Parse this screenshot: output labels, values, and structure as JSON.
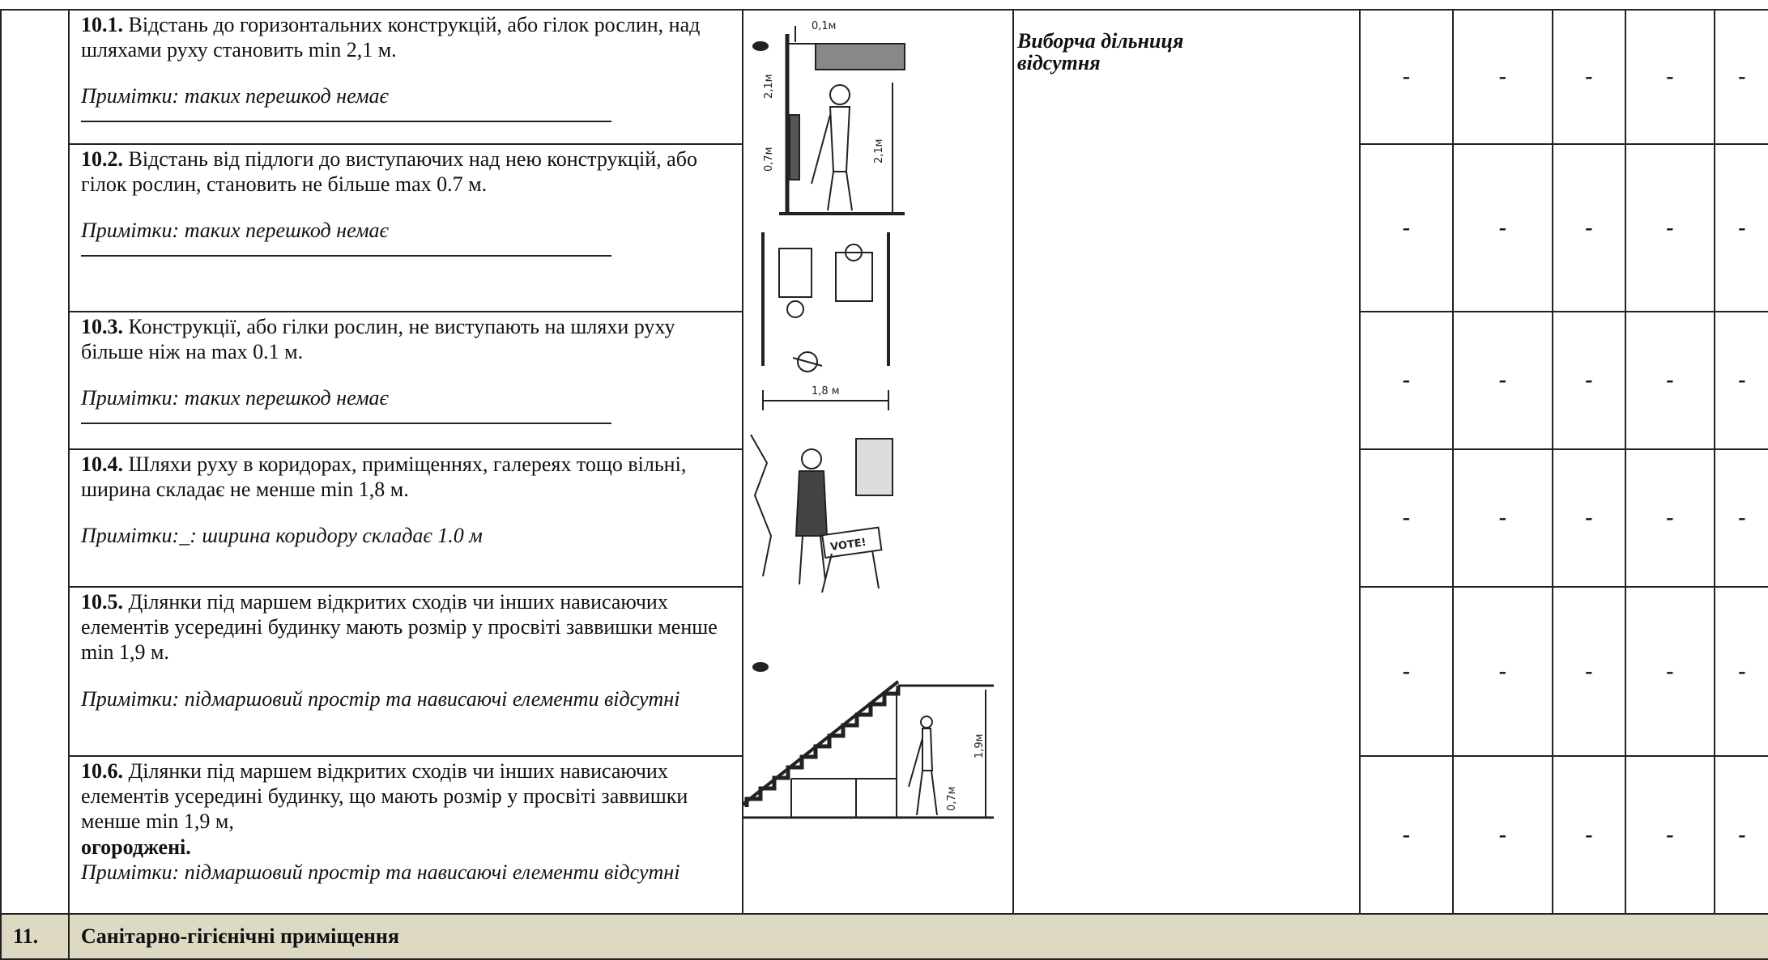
{
  "rows": [
    {
      "number": "10.1.",
      "text": "Відстань до горизонтальних конструкцій, або гілок рослин, над шляхами руху становить min 2,1 м.",
      "note": "Примітки: таких перешкод немає",
      "marks": [
        "-",
        "-",
        "-",
        "-",
        "-"
      ]
    },
    {
      "number": "10.2.",
      "text": "Відстань від підлоги до виступаючих над нею конструкцій, або гілок рослин, становить не більше max 0.7 м.",
      "note": "Примітки:  таких перешкод немає",
      "marks": [
        "-",
        "-",
        "-",
        "-",
        "-"
      ]
    },
    {
      "number": "10.3.",
      "text": "Конструкції, або гілки рослин, не виступають на шляхи руху більше ніж на max 0.1 м.",
      "note": "Примітки:  таких перешкод немає",
      "marks": [
        "-",
        "-",
        "-",
        "-",
        "-"
      ]
    },
    {
      "number": "10.4.",
      "text": "Шляхи руху в коридорах, приміщеннях, галереях тощо вільні, ширина складає не менше min 1,8 м.",
      "note": "Примітки:_: ширина коридору складає  1.0 м",
      "marks": [
        "-",
        "-",
        "-",
        "-",
        "-"
      ]
    },
    {
      "number": "10.5.",
      "text": "Ділянки під маршем відкритих сходів чи інших нависаючих елементів усередині будинку мають розмір у просвіті заввишки менше min 1,9 м.",
      "note": "Примітки: підмаршовий простір та нависаючі елементи відсутні",
      "marks": [
        "-",
        "-",
        "-",
        "-",
        "-"
      ]
    },
    {
      "number": "10.6.",
      "text": "Ділянки під маршем відкритих сходів чи інших нависаючих елементів усередині будинку, що мають розмір у просвіті заввишки менше min 1,9 м,",
      "emphasis": "огороджені.",
      "note": "Примітки:  підмаршовий простір та нависаючі елементи відсутні",
      "marks": [
        "-",
        "-",
        "-",
        "-",
        "-"
      ]
    }
  ],
  "location_note": "Виборча дільниця відсутня",
  "figure_labels": {
    "gap": "0,1м",
    "height_left": "2,1м",
    "low": "0,7м",
    "height_right": "2,1м",
    "width": "1,8 м",
    "sign": "VOTE!",
    "stair_height": "1,9м",
    "rail_height": "0,7м"
  },
  "section": {
    "number": "11.",
    "title": "Санітарно-гігієнічні приміщення"
  }
}
